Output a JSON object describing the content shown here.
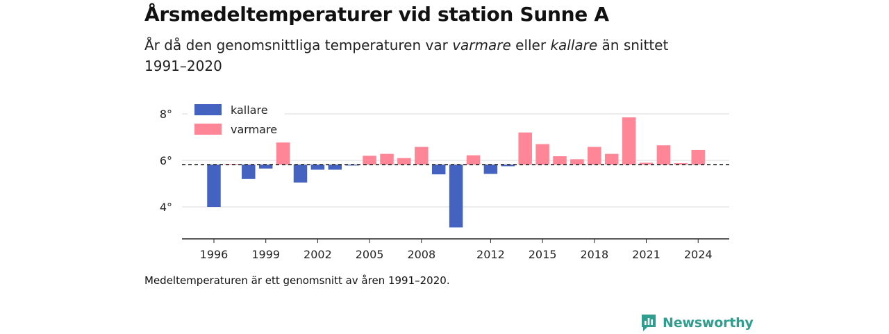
{
  "header": {
    "title": "Årsmedeltemperaturer vid station Sunne A",
    "subtitle_part1": "År då den genomsnittliga temperaturen var ",
    "subtitle_warmer": "varmare",
    "subtitle_part2": " eller ",
    "subtitle_colder": "kallare",
    "subtitle_part3": " än snittet 1991–2020"
  },
  "footnote": "Medeltemperaturen är ett genomsnitt av åren 1991–2020.",
  "brand": {
    "name": "Newsworthy",
    "icon": "newsworthy-logo-icon",
    "color": "#2f9e8f"
  },
  "chart_data": {
    "type": "bar",
    "title": "Årsmedeltemperaturer vid station Sunne A",
    "baseline": 5.82,
    "baseline_style": "dashed",
    "years": [
      1996,
      1997,
      1998,
      1999,
      2000,
      2001,
      2002,
      2003,
      2004,
      2005,
      2006,
      2007,
      2008,
      2009,
      2010,
      2011,
      2012,
      2013,
      2014,
      2015,
      2016,
      2017,
      2018,
      2019,
      2020,
      2021,
      2022,
      2023,
      2024
    ],
    "values": [
      4.0,
      5.85,
      5.2,
      5.65,
      6.77,
      5.05,
      5.6,
      5.6,
      5.78,
      6.2,
      6.28,
      6.1,
      6.58,
      5.4,
      3.12,
      6.22,
      5.42,
      5.75,
      7.2,
      6.7,
      6.18,
      6.05,
      6.58,
      6.28,
      7.85,
      5.9,
      6.65,
      5.88,
      6.45
    ],
    "x_tick_labels": [
      "1996",
      "1999",
      "2002",
      "2005",
      "2008",
      "2012",
      "2015",
      "2018",
      "2021",
      "2024"
    ],
    "y_ticks": [
      4,
      6,
      8
    ],
    "y_tick_labels": [
      "4°",
      "6°",
      "8°"
    ],
    "ylim": [
      2.7,
      9.0
    ],
    "grid": true,
    "legend_position": "top-left",
    "legend": [
      {
        "label": "kallare",
        "color": "#4463c0"
      },
      {
        "label": "varmare",
        "color": "#ff8696"
      }
    ],
    "colors": {
      "colder": "#4463c0",
      "warmer": "#ff8696",
      "grid": "#d8d8d8",
      "axis": "#222222"
    }
  }
}
